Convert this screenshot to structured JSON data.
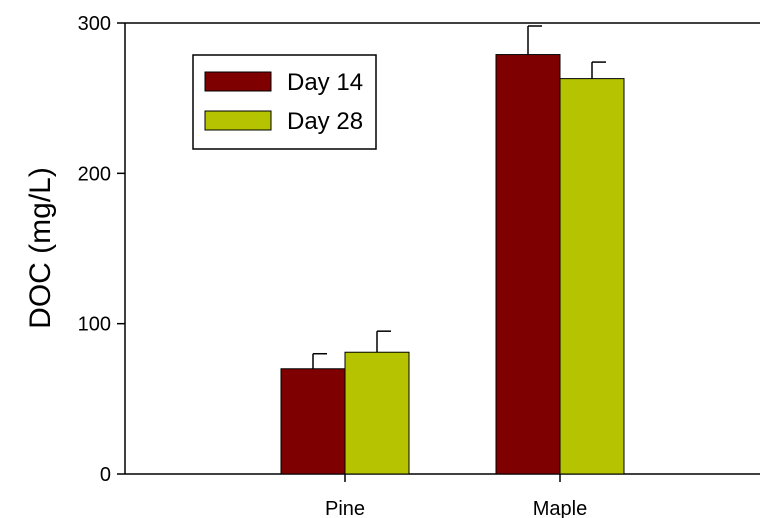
{
  "chart_data": {
    "type": "bar",
    "title": "",
    "xlabel": "",
    "ylabel": "DOC (mg/L)",
    "categories": [
      "Pine",
      "Maple"
    ],
    "ylim": [
      0,
      300
    ],
    "yticks": [
      0,
      100,
      200,
      300
    ],
    "grid": false,
    "legend_position": "top-left",
    "series": [
      {
        "name": "Day 14",
        "color": "#7f0000",
        "values": [
          70,
          279
        ],
        "errors": [
          10,
          19
        ]
      },
      {
        "name": "Day 28",
        "color": "#b5c300",
        "values": [
          81,
          263
        ],
        "errors": [
          14,
          11
        ]
      }
    ]
  }
}
